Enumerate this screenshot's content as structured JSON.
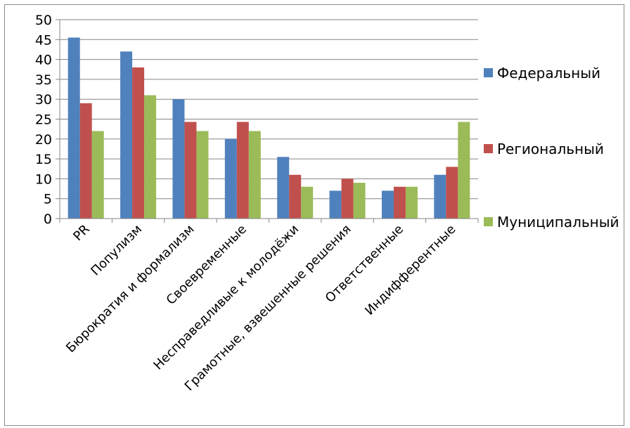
{
  "chart_data": {
    "type": "bar",
    "title": "",
    "xlabel": "",
    "ylabel": "",
    "ylim": [
      0,
      50
    ],
    "yticks": [
      0,
      5,
      10,
      15,
      20,
      25,
      30,
      35,
      40,
      45,
      50
    ],
    "grid": true,
    "legend_position": "right",
    "categories": [
      "PR",
      "Популизм",
      "Бюрократия и формализм",
      "Своевременные",
      "Несправедливые к молодёжи",
      "Грамотные, взвешенные решения",
      "Ответственные",
      "Индифферентные"
    ],
    "series": [
      {
        "name": "Федеральный",
        "color": "#4f81bd",
        "values": [
          45.5,
          42,
          30,
          20,
          15.5,
          7,
          7,
          11
        ]
      },
      {
        "name": "Региональный",
        "color": "#c0504d",
        "values": [
          29,
          38,
          24.3,
          24.3,
          11,
          10,
          8,
          13
        ]
      },
      {
        "name": "Муниципальный",
        "color": "#9bbb59",
        "values": [
          22,
          31,
          22,
          22,
          8,
          9,
          8,
          24.3
        ]
      }
    ]
  }
}
